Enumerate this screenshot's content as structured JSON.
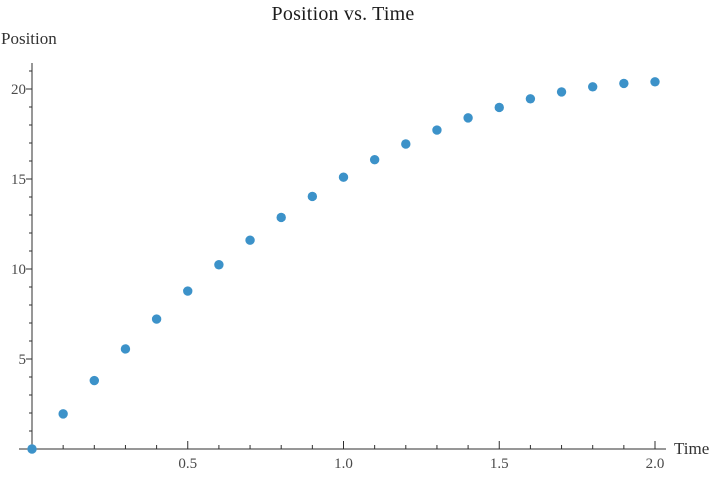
{
  "chart_data": {
    "type": "scatter",
    "title": "Position vs. Time",
    "xlabel": "Time",
    "ylabel": "Position",
    "x": [
      0.0,
      0.1,
      0.2,
      0.3,
      0.4,
      0.5,
      0.6,
      0.7,
      0.8,
      0.9,
      1.0,
      1.1,
      1.2,
      1.3,
      1.4,
      1.5,
      1.6,
      1.7,
      1.8,
      1.9,
      2.0
    ],
    "y": [
      0.0,
      1.951,
      3.804,
      5.559,
      7.216,
      8.775,
      10.236,
      11.599,
      12.864,
      14.031,
      15.1,
      16.071,
      16.944,
      17.719,
      18.396,
      18.975,
      19.456,
      19.839,
      20.124,
      20.311,
      20.4
    ],
    "x_ticks": [
      0.5,
      1.0,
      1.5,
      2.0
    ],
    "x_tick_labels": [
      "0.5",
      "1.0",
      "1.5",
      "2.0"
    ],
    "y_ticks": [
      5,
      10,
      15,
      20
    ],
    "y_tick_labels": [
      "5",
      "10",
      "15",
      "20"
    ],
    "x_minor_step": 0.1,
    "y_minor_step": 1,
    "xlim": [
      -0.042,
      2.036
    ],
    "ylim": [
      0,
      21.45
    ],
    "grid": false,
    "legend_position": "none",
    "point_color": "#3c92c9",
    "axis_color": "#2f2f2f",
    "tick_label_color": "#4a4a4a",
    "title_color": "#1c1c1c",
    "axis_label_color": "#333333"
  }
}
